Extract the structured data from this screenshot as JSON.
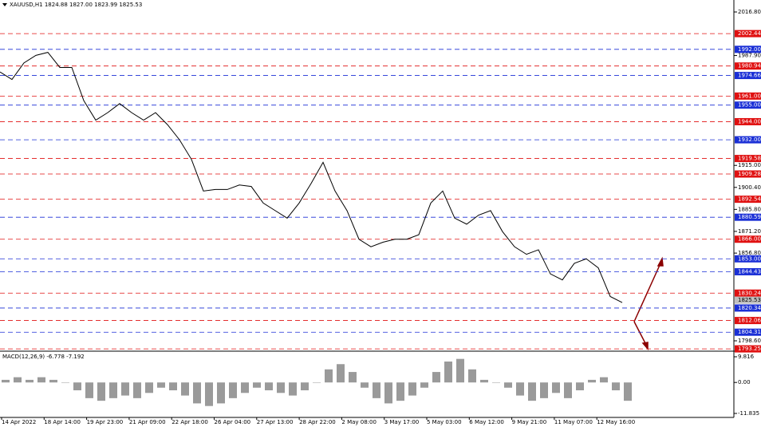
{
  "title": "XAUUSD,H1  1824.88 1827.00 1823.99 1825.53",
  "price_axis": {
    "ticks": [
      {
        "value": 2016.8,
        "label": "2016.80"
      },
      {
        "value": 1987.9,
        "label": "1987.90"
      },
      {
        "value": 1915.0,
        "label": "1915.00"
      },
      {
        "value": 1900.4,
        "label": "1900.40"
      },
      {
        "value": 1885.8,
        "label": "1885.80"
      },
      {
        "value": 1871.2,
        "label": "1871.20"
      },
      {
        "value": 1856.8,
        "label": "1856.80"
      },
      {
        "value": 1798.6,
        "label": "1798.60"
      }
    ]
  },
  "levels": [
    {
      "color": "#e01010",
      "price": 2002.44
    },
    {
      "color": "#1a2fd6",
      "price": {
        "value": 1992.0,
        "label": "1992.00"
      }
    },
    {
      "color": "#e01010",
      "price": 1980.94
    },
    {
      "color": "#1a2fd6",
      "price": 1974.66
    },
    {
      "color": "#e01010",
      "price": {
        "value": 1961.0,
        "label": "1961.00"
      }
    },
    {
      "color": "#1a2fd6",
      "price": {
        "value": 1955.0,
        "label": "1955.00"
      }
    },
    {
      "color": "#e01010",
      "price": {
        "value": 1944.0,
        "label": "1944.00"
      }
    },
    {
      "color": "#1a2fd6",
      "price": {
        "value": 1932.0,
        "label": "1932.00"
      }
    },
    {
      "color": "#e01010",
      "price": 1919.58
    },
    {
      "color": "#e01010",
      "price": 1909.28
    },
    {
      "color": "#e01010",
      "price": 1892.54
    },
    {
      "color": "#1a2fd6",
      "price": 1880.59
    },
    {
      "color": "#e01010",
      "price": {
        "value": 1866.0,
        "label": "1866.00"
      }
    },
    {
      "color": "#1a2fd6",
      "price": {
        "value": 1853.0,
        "label": "1853.00"
      }
    },
    {
      "color": "#1a2fd6",
      "price": 1844.43
    },
    {
      "color": "#e01010",
      "price": 1830.24
    },
    {
      "color": "#1a2fd6",
      "price": 1820.34
    },
    {
      "color": "#e01010",
      "price": 1812.06
    },
    {
      "color": "#1a2fd6",
      "price": 1804.31
    },
    {
      "color": "#e01010",
      "price": 1793.25
    }
  ],
  "current_price": 1825.53,
  "price": {
    "color": "#000000",
    "values": [
      1977,
      1972,
      1983,
      1988,
      1990,
      1980,
      1980,
      1958,
      1945,
      1950,
      1956,
      1950,
      1945,
      1950,
      1942,
      1932,
      1919,
      1898,
      1899,
      1899,
      1902,
      1901,
      1890,
      1885,
      1880,
      1890,
      1903,
      1917,
      1898,
      1885,
      1866,
      1861,
      1864,
      1866,
      1866,
      1869,
      1890,
      1898,
      1880,
      1876,
      1882,
      1885,
      1871,
      1861,
      1856,
      1859,
      1843,
      1839,
      1850,
      1853,
      1847,
      1828,
      1824
    ]
  },
  "time_labels": [
    "14 Apr 2022",
    "18 Apr 14:00",
    "19 Apr 23:00",
    "21 Apr 09:00",
    "22 Apr 18:00",
    "26 Apr 04:00",
    "27 Apr 13:00",
    "28 Apr 22:00",
    "2 May 08:00",
    "3 May 17:00",
    "5 May 03:00",
    "6 May 12:00",
    "9 May 21:00",
    "11 May 07:00",
    "12 May 16:00"
  ],
  "macd": {
    "title": "MACD(12,26,9) -6.778 -7.192",
    "ticks": [
      9.816,
      {
        "value": 0,
        "label": "0.00"
      },
      -11.835
    ],
    "histogram": [
      1,
      2,
      1,
      2,
      1,
      0,
      -3,
      -6,
      -7,
      -6,
      -5,
      -6,
      -4,
      -2,
      -3,
      -5,
      -8,
      -9,
      -8,
      -6,
      -4,
      -2,
      -3,
      -4,
      -5,
      -3,
      0,
      5,
      7,
      4,
      -2,
      -6,
      -8,
      -7,
      -5,
      -2,
      4,
      8,
      9,
      5,
      1,
      0,
      -2,
      -5,
      -7,
      -6,
      -4,
      -6,
      -3,
      1,
      2,
      -3,
      -7
    ]
  }
}
